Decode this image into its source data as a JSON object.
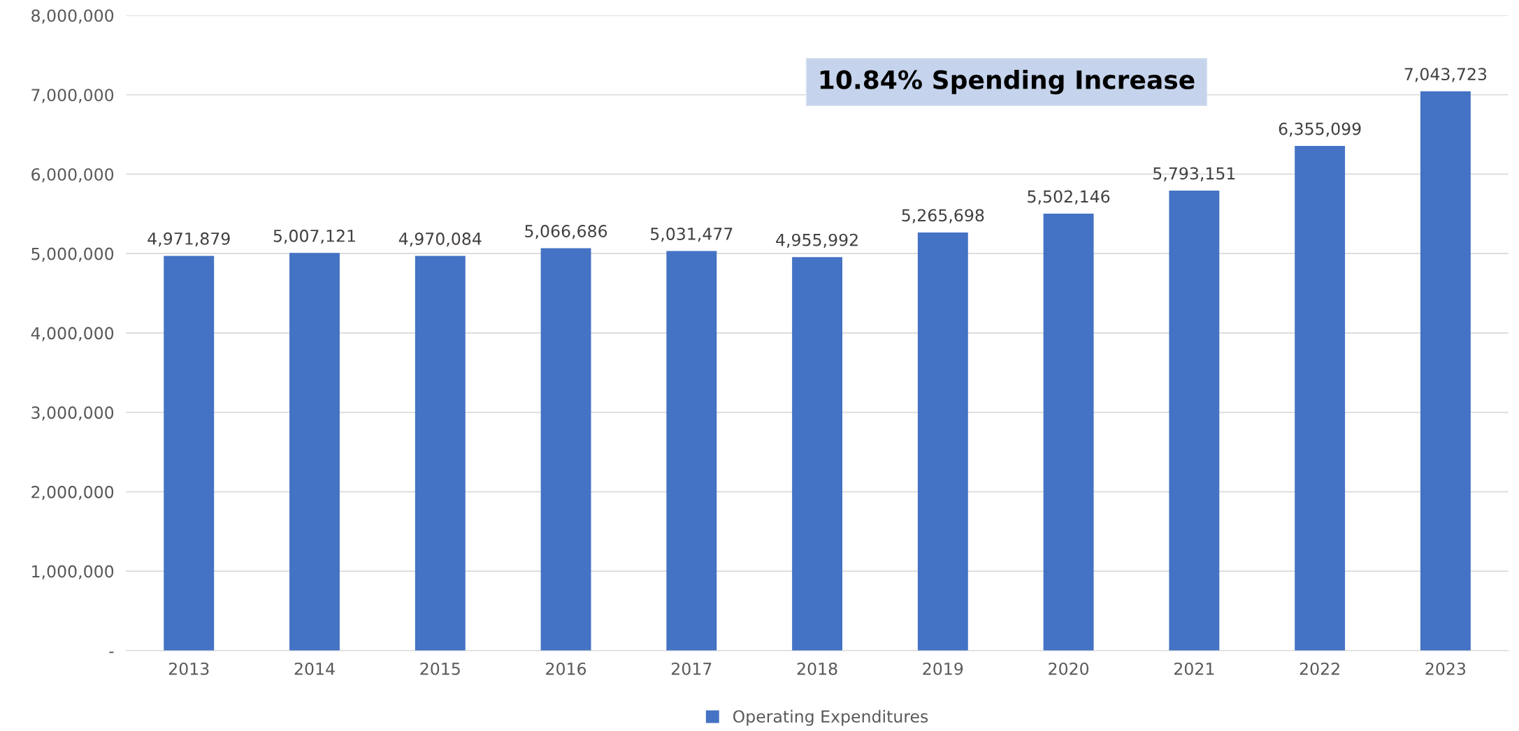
{
  "chart_data": {
    "type": "bar",
    "categories": [
      "2013",
      "2014",
      "2015",
      "2016",
      "2017",
      "2018",
      "2019",
      "2020",
      "2021",
      "2022",
      "2023"
    ],
    "series": [
      {
        "name": "Operating Expenditures",
        "color": "#4472c4",
        "values": [
          4971879,
          5007121,
          4970084,
          5066686,
          5031477,
          4955992,
          5265698,
          5502146,
          5793151,
          6355099,
          7043723
        ],
        "value_labels": [
          "4,971,879",
          "5,007,121",
          "4,970,084",
          "5,066,686",
          "5,031,477",
          "4,955,992",
          "5,265,698",
          "5,502,146",
          "5,793,151",
          "6,355,099",
          "7,043,723"
        ]
      }
    ],
    "ylim": [
      0,
      8000000
    ],
    "yticks": [
      {
        "value": 0,
        "label": "-"
      },
      {
        "value": 1000000,
        "label": "1,000,000"
      },
      {
        "value": 2000000,
        "label": "2,000,000"
      },
      {
        "value": 3000000,
        "label": "3,000,000"
      },
      {
        "value": 4000000,
        "label": "4,000,000"
      },
      {
        "value": 5000000,
        "label": "5,000,000"
      },
      {
        "value": 6000000,
        "label": "6,000,000"
      },
      {
        "value": 7000000,
        "label": "7,000,000"
      },
      {
        "value": 8000000,
        "label": "8,000,000"
      }
    ],
    "annotations": [
      "10.84% Spending Increase"
    ],
    "grid": "y",
    "legend": "bottom"
  }
}
